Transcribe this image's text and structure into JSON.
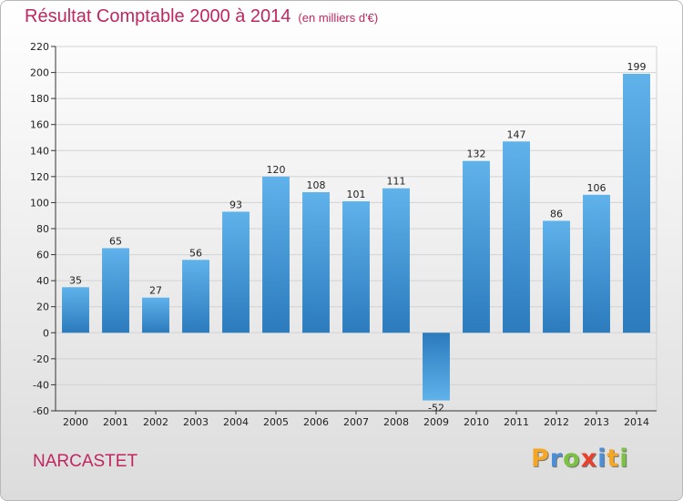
{
  "chart_data": {
    "type": "bar",
    "title": "Résultat Comptable 2000 à 2014",
    "subtitle": "(en milliers d'€)",
    "categories": [
      "2000",
      "2001",
      "2002",
      "2003",
      "2004",
      "2005",
      "2006",
      "2007",
      "2008",
      "2009",
      "2010",
      "2011",
      "2012",
      "2013",
      "2014"
    ],
    "values": [
      35,
      65,
      27,
      56,
      93,
      120,
      108,
      101,
      111,
      -52,
      132,
      147,
      86,
      106,
      199
    ],
    "ylim": [
      -60,
      220
    ],
    "yticks": [
      -60,
      -40,
      -20,
      0,
      20,
      40,
      60,
      80,
      100,
      120,
      140,
      160,
      180,
      200,
      220
    ],
    "xlabel": "",
    "ylabel": "",
    "grid": "horizontal",
    "bar_color": "#3a93d6"
  },
  "place_name": "NARCASTET",
  "logo": {
    "letters": [
      "P",
      "r",
      "o",
      "x",
      "i",
      "t",
      "i"
    ],
    "colors": [
      "#f5a623",
      "#4a90d9",
      "#7cc242",
      "#e8412c",
      "#4a90d9",
      "#f5a623",
      "#7cc242"
    ]
  }
}
